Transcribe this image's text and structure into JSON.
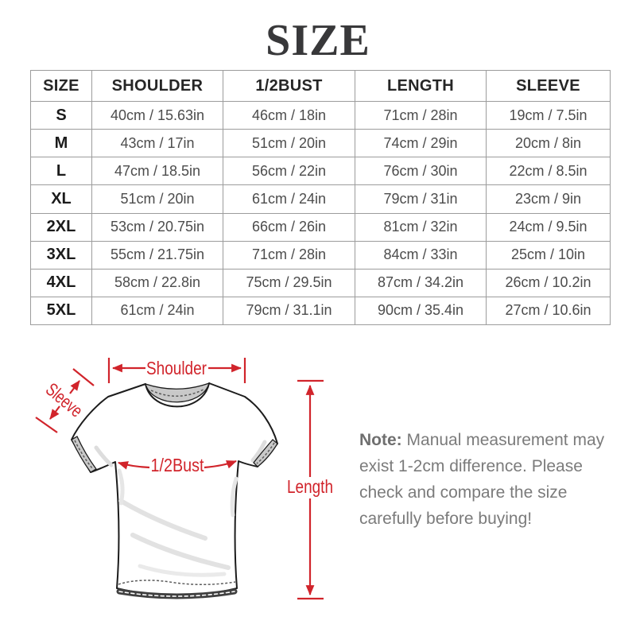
{
  "page": {
    "title": "SIZE"
  },
  "table": {
    "headers": [
      "SIZE",
      "SHOULDER",
      "1/2BUST",
      "LENGTH",
      "SLEEVE"
    ],
    "rows": [
      [
        "S",
        "40cm / 15.63in",
        "46cm / 18in",
        "71cm / 28in",
        "19cm / 7.5in"
      ],
      [
        "M",
        "43cm / 17in",
        "51cm / 20in",
        "74cm / 29in",
        "20cm / 8in"
      ],
      [
        "L",
        "47cm / 18.5in",
        "56cm / 22in",
        "76cm / 30in",
        "22cm / 8.5in"
      ],
      [
        "XL",
        "51cm / 20in",
        "61cm / 24in",
        "79cm / 31in",
        "23cm / 9in"
      ],
      [
        "2XL",
        "53cm / 20.75in",
        "66cm / 26in",
        "81cm / 32in",
        "24cm / 9.5in"
      ],
      [
        "3XL",
        "55cm / 21.75in",
        "71cm / 28in",
        "84cm / 33in",
        "25cm / 10in"
      ],
      [
        "4XL",
        "58cm / 22.8in",
        "75cm / 29.5in",
        "87cm / 34.2in",
        "26cm / 10.2in"
      ],
      [
        "5XL",
        "61cm / 24in",
        "79cm / 31.1in",
        "90cm / 35.4in",
        "27cm / 10.6in"
      ]
    ]
  },
  "diagram": {
    "labels": {
      "shoulder": "Shoulder",
      "sleeve": "Sleeve",
      "bust": "1/2Bust",
      "length": "Length"
    }
  },
  "note": {
    "label": "Note:",
    "body": "Manual measurement may exist 1-2cm difference. Please check and compare the size carefully before buying!"
  },
  "colors": {
    "accent": "#d1242b",
    "table_border": "#9c9c9c",
    "note_text": "#7b7b7b",
    "title_text": "#38383a",
    "collar_gray": "#c9c9c9"
  }
}
